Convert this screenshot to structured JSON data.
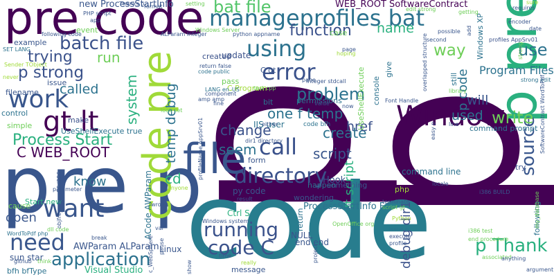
{
  "words": [
    {
      "text": "p",
      "color": "#440154"
    },
    {
      "text": "p",
      "color": "#440154"
    },
    {
      "text": "code",
      "color": "#287d8e"
    },
    {
      "text": "pre p",
      "color": "#39568c"
    },
    {
      "text": "pre code",
      "color": "#440154"
    },
    {
      "text": "p pre",
      "color": "#2ab07f"
    },
    {
      "text": "code pre",
      "color": "#a0da39"
    },
    {
      "text": "Window",
      "color": "#440154"
    },
    {
      "text": "file",
      "color": "#39568c"
    },
    {
      "text": "manageprofiles bat",
      "color": "#2c728e"
    },
    {
      "text": "bat file",
      "color": "#52c569"
    },
    {
      "text": "batch file",
      "color": "#3b528b"
    },
    {
      "text": "using",
      "color": "#2c728e"
    },
    {
      "text": "error",
      "color": "#3b528b"
    },
    {
      "text": "p strong",
      "color": "#3b528b"
    },
    {
      "text": "gt lt",
      "color": "#440154"
    },
    {
      "text": "work",
      "color": "#39568c"
    },
    {
      "text": "Process Start",
      "color": "#2ab07f"
    },
    {
      "text": "C WEB_ROOT",
      "color": "#440154"
    },
    {
      "text": "want",
      "color": "#39568c"
    },
    {
      "text": "need",
      "color": "#39568c"
    },
    {
      "text": "application",
      "color": "#2c728e"
    },
    {
      "text": "directory",
      "color": "#3b528b"
    },
    {
      "text": "call",
      "color": "#3b528b"
    },
    {
      "text": "running",
      "color": "#3b528b"
    },
    {
      "text": "code C",
      "color": "#3b528b"
    },
    {
      "text": "p Thank",
      "color": "#2ab07f"
    },
    {
      "text": "source",
      "color": "#39568c"
    },
    {
      "text": "write",
      "color": "#6ece58"
    },
    {
      "text": "use",
      "color": "#2c728e"
    },
    {
      "text": "way",
      "color": "#6ece58"
    },
    {
      "text": "function",
      "color": "#3b528b"
    },
    {
      "text": "name",
      "color": "#2ab07f"
    },
    {
      "text": "run",
      "color": "#6ece58"
    },
    {
      "text": "trying",
      "color": "#3b528b"
    },
    {
      "text": "called",
      "color": "#2c728e"
    },
    {
      "text": "system",
      "color": "#2ab07f"
    },
    {
      "text": "temp debug",
      "color": "#2c728e"
    },
    {
      "text": "problem",
      "color": "#2c728e"
    },
    {
      "text": "change",
      "color": "#3b528b"
    },
    {
      "text": "one f temp",
      "color": "#2c728e"
    },
    {
      "text": "create",
      "color": "#2c728e"
    },
    {
      "text": "script",
      "color": "#39568c"
    },
    {
      "text": "seem",
      "color": "#2c728e"
    },
    {
      "text": "cd",
      "color": "#2ab07f"
    },
    {
      "text": "href",
      "color": "#3b528b"
    },
    {
      "text": "used",
      "color": "#2c728e"
    },
    {
      "text": "will",
      "color": "#39568c"
    },
    {
      "text": "know",
      "color": "#2c728e"
    },
    {
      "text": "open",
      "color": "#39568c"
    },
    {
      "text": "lt script",
      "color": "#2ab07f"
    },
    {
      "text": "debug dir1",
      "color": "#3b528b"
    },
    {
      "text": "p code",
      "color": "#2c728e"
    },
    {
      "text": "Program Files",
      "color": "#2c728e"
    },
    {
      "text": "command line",
      "color": "#2c728e"
    },
    {
      "text": "new ProcessStartInfo",
      "color": "#39568c"
    },
    {
      "text": "WEB_ROOT SoftwareContract",
      "color": "#440154"
    },
    {
      "text": "ProcessStartInfo F",
      "color": "#2c728e"
    },
    {
      "text": "AWParam ALParam",
      "color": "#39568c"
    },
    {
      "text": "Visual Studio",
      "color": "#2ab07f"
    },
    {
      "text": "ACode AWParam",
      "color": "#2c728e"
    },
    {
      "text": "UseShellExecute true",
      "color": "#2c728e"
    },
    {
      "text": "Start new",
      "color": "#2ab07f"
    },
    {
      "text": "Ctrl S",
      "color": "#2ab07f"
    },
    {
      "text": "py code",
      "color": "#39568c"
    },
    {
      "text": "example",
      "color": "#39568c"
    },
    {
      "text": "control",
      "color": "#2c728e"
    },
    {
      "text": "simple",
      "color": "#6ece58"
    },
    {
      "text": "filename",
      "color": "#39568c"
    },
    {
      "text": "make",
      "color": "#3b528b"
    },
    {
      "text": "issue",
      "color": "#39568c"
    },
    {
      "text": "event",
      "color": "#6ece58"
    },
    {
      "text": "Hook",
      "color": "#39568c"
    },
    {
      "text": "php",
      "color": "#a0da39"
    },
    {
      "text": "cause",
      "color": "#6ece58"
    },
    {
      "text": "sun star",
      "color": "#39568c"
    },
    {
      "text": "bfh bfType",
      "color": "#2c728e"
    },
    {
      "text": "Linux",
      "color": "#39568c"
    },
    {
      "text": "end end",
      "color": "#39568c"
    },
    {
      "text": "NULL",
      "color": "#3b528b"
    },
    {
      "text": "message",
      "color": "#39568c"
    },
    {
      "text": "IIS user",
      "color": "#2c728e"
    },
    {
      "text": "update",
      "color": "#3b528b"
    },
    {
      "text": "pass",
      "color": "#6ece58"
    },
    {
      "text": "C Program",
      "color": "#a0da39"
    },
    {
      "text": "C gt",
      "color": "#39568c"
    },
    {
      "text": "Windows XP",
      "color": "#2c728e"
    },
    {
      "text": "UseShellExecute",
      "color": "#6ece58"
    },
    {
      "text": "command prompt",
      "color": "#2c728e"
    },
    {
      "text": "something",
      "color": "#39568c"
    },
    {
      "text": "wondering",
      "color": "#39568c"
    },
    {
      "text": "happen",
      "color": "#2c728e"
    },
    {
      "text": "form",
      "color": "#39568c"
    },
    {
      "text": "return",
      "color": "#2c728e"
    },
    {
      "text": "following",
      "color": "#2c728e"
    },
    {
      "text": "try",
      "color": "#3b528b"
    },
    {
      "text": "created",
      "color": "#3b528b"
    },
    {
      "text": "bit",
      "color": "#2c728e"
    },
    {
      "text": "permissions",
      "color": "#2c728e"
    },
    {
      "text": "case",
      "color": "#6ece58"
    },
    {
      "text": "give",
      "color": "#2c728e"
    },
    {
      "text": "console",
      "color": "#2c728e"
    },
    {
      "text": "still",
      "color": "#2c728e"
    },
    {
      "text": "Thanks p",
      "color": "#39568c"
    },
    {
      "text": "PHP script",
      "color": "#39568c"
    },
    {
      "text": "following code",
      "color": "#39568c"
    },
    {
      "text": "SET LANG",
      "color": "#2c728e"
    },
    {
      "text": "Sender TObject",
      "color": "#a0da39"
    },
    {
      "text": "never",
      "color": "#a0da39"
    },
    {
      "text": "LANG en_US",
      "color": "#2c728e"
    },
    {
      "text": "return false",
      "color": "#39568c"
    },
    {
      "text": "code public",
      "color": "#2c728e"
    },
    {
      "text": "test cpp",
      "color": "#6ece58"
    },
    {
      "text": "Integer stdcall",
      "color": "#39568c"
    },
    {
      "text": "code bfh",
      "color": "#2c728e"
    },
    {
      "text": "dir1 directory",
      "color": "#39568c"
    },
    {
      "text": "Font Handle",
      "color": "#39568c"
    },
    {
      "text": "overlapped structure",
      "color": "#39568c"
    },
    {
      "text": "library",
      "color": "#6ece58"
    },
    {
      "text": "strong edit",
      "color": "#2c728e"
    },
    {
      "text": "i386 BUILD",
      "color": "#39568c"
    },
    {
      "text": "terminate",
      "color": "#39568c"
    },
    {
      "text": "script gt",
      "color": "#6ece58"
    },
    {
      "text": "parameter",
      "color": "#39568c"
    },
    {
      "text": "wrong",
      "color": "#39568c"
    },
    {
      "text": "result",
      "color": "#39568c"
    },
    {
      "text": "Windows system",
      "color": "#39568c"
    },
    {
      "text": "OpenOffice org",
      "color": "#6ece58"
    },
    {
      "text": "issue p",
      "color": "#2c728e"
    },
    {
      "text": "execute",
      "color": "#3b528b"
    },
    {
      "text": "profile",
      "color": "#39568c"
    },
    {
      "text": "Python",
      "color": "#a0da39"
    },
    {
      "text": "end procedure",
      "color": "#6ece58"
    },
    {
      "text": "i386 test",
      "color": "#6ece58"
    },
    {
      "text": "associated",
      "color": "#6ece58"
    },
    {
      "text": "anything",
      "color": "#39568c"
    },
    {
      "text": "argument",
      "color": "#39568c"
    },
    {
      "text": "really",
      "color": "#a0da39"
    },
    {
      "text": "time",
      "color": "#39568c"
    },
    {
      "text": "WordToPdf php",
      "color": "#2c728e"
    },
    {
      "text": "github",
      "color": "#39568c"
    },
    {
      "text": "think",
      "color": "#6ece58"
    },
    {
      "text": "break",
      "color": "#39568c"
    },
    {
      "text": "var",
      "color": "#39568c"
    },
    {
      "text": "anyone",
      "color": "#a0da39"
    },
    {
      "text": "format",
      "color": "#39568c"
    },
    {
      "text": "setting",
      "color": "#6ece58"
    },
    {
      "text": "edit strong",
      "color": "#6ece58"
    },
    {
      "text": "getting",
      "color": "#6ece58"
    },
    {
      "text": "sure",
      "color": "#a0da39"
    },
    {
      "text": "requires",
      "color": "#39568c"
    },
    {
      "text": "encoder",
      "color": "#39568c"
    },
    {
      "text": "date",
      "color": "#39568c"
    },
    {
      "text": "profiles AppSrv01",
      "color": "#3b528b"
    },
    {
      "text": "python appname",
      "color": "#39568c"
    },
    {
      "text": "Windows Server",
      "color": "#6ece58"
    },
    {
      "text": "ALParam Integer",
      "color": "#39568c"
    },
    {
      "text": "component",
      "color": "#39568c"
    },
    {
      "text": "amp amp",
      "color": "#39568c"
    },
    {
      "text": "app",
      "color": "#39568c"
    },
    {
      "text": "possible",
      "color": "#39568c"
    },
    {
      "text": "second",
      "color": "#39568c"
    },
    {
      "text": "hoping",
      "color": "#a0da39"
    },
    {
      "text": "locale",
      "color": "#39568c"
    },
    {
      "text": "look set",
      "color": "#6ece58"
    },
    {
      "text": "fine",
      "color": "#39568c"
    },
    {
      "text": "value",
      "color": "#39568c"
    },
    {
      "text": "either",
      "color": "#39568c"
    },
    {
      "text": "line",
      "color": "#39568c"
    },
    {
      "text": "page",
      "color": "#39568c"
    },
    {
      "text": "pane",
      "color": "#39568c"
    },
    {
      "text": "now",
      "color": "#39568c"
    },
    {
      "text": "project",
      "color": "#39568c"
    },
    {
      "text": "c_WebSphere",
      "color": "#39568c"
    },
    {
      "text": "my_database",
      "color": "#6ece58"
    },
    {
      "text": "SoftwareContract WordToPdf",
      "color": "#39568c"
    },
    {
      "text": "objfre_wxp_x86 i386",
      "color": "#39568c"
    },
    {
      "text": "profileName AppSrv01",
      "color": "#39568c"
    },
    {
      "text": "easy p",
      "color": "#39568c"
    },
    {
      "text": "show",
      "color": "#39568c"
    },
    {
      "text": "pause",
      "color": "#39568c"
    },
    {
      "text": "strong",
      "color": "#6ece58"
    },
    {
      "text": "add",
      "color": "#39568c"
    },
    {
      "text": "dll code",
      "color": "#6ece58"
    }
  ]
}
